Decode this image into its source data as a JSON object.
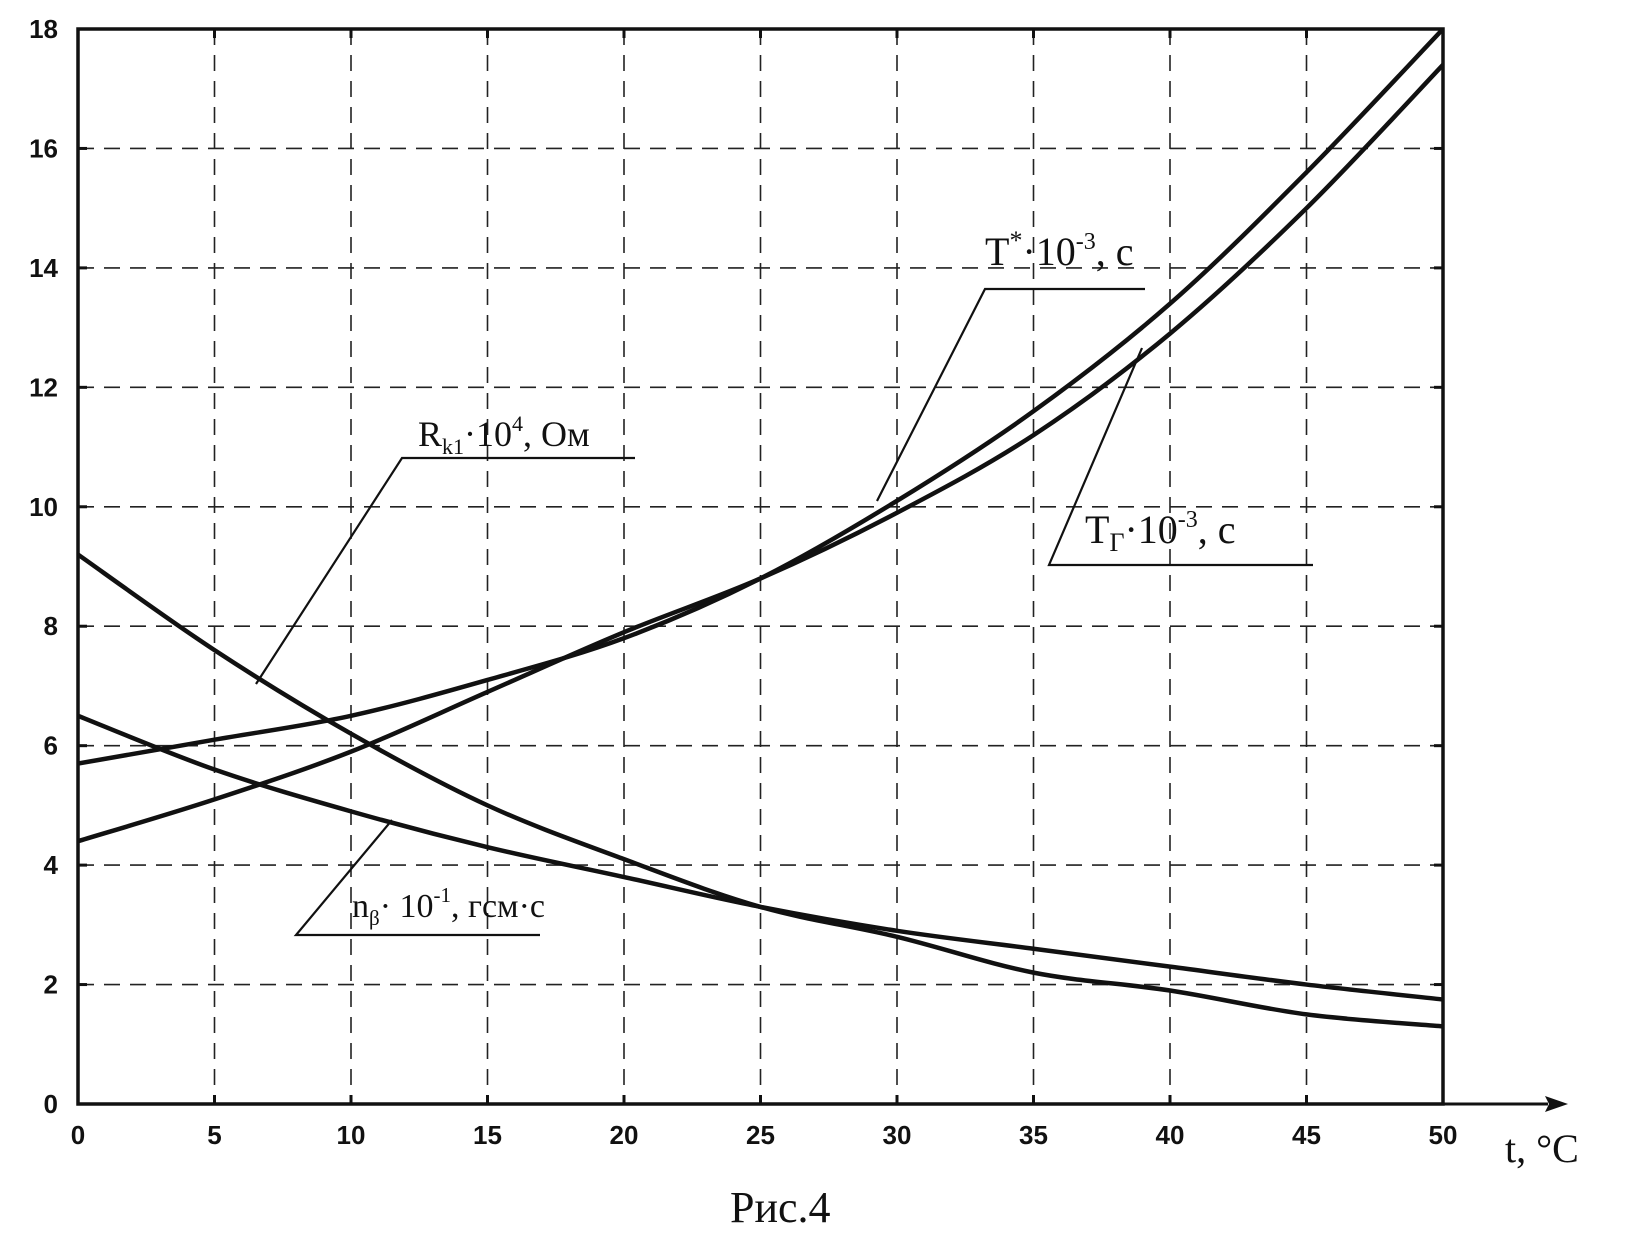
{
  "chart_data": {
    "type": "line",
    "title": "",
    "caption": "Рис.4",
    "xlabel": "t, °C",
    "ylabel": "",
    "xlim": [
      0,
      50
    ],
    "ylim": [
      0,
      18
    ],
    "xticks": [
      0,
      5,
      10,
      15,
      20,
      25,
      30,
      35,
      40,
      45,
      50
    ],
    "yticks": [
      0,
      2,
      4,
      6,
      8,
      10,
      12,
      14,
      16,
      18
    ],
    "grid": true,
    "series": [
      {
        "name": "T*·10^-3, c",
        "label": {
          "base": "T",
          "sup": "*",
          "rest": "·10",
          "exp": "-3",
          "unit": ", c"
        },
        "x": [
          0,
          5,
          10,
          15,
          20,
          25,
          30,
          35,
          40,
          45,
          50
        ],
        "y": [
          5.7,
          6.1,
          6.5,
          7.1,
          7.8,
          8.8,
          10.1,
          11.6,
          13.4,
          15.6,
          18.0
        ]
      },
      {
        "name": "TГ·10^-3, c",
        "label": {
          "base": "T",
          "sub": "Г",
          "rest": "·10",
          "exp": "-3",
          "unit": ", c"
        },
        "x": [
          0,
          5,
          10,
          15,
          20,
          25,
          30,
          35,
          40,
          45,
          50
        ],
        "y": [
          4.4,
          5.1,
          5.9,
          6.9,
          7.9,
          8.8,
          9.9,
          11.2,
          12.9,
          15.0,
          17.4
        ]
      },
      {
        "name": "Rk1·10^4, Ом",
        "label": {
          "base": "R",
          "sub": "k1",
          "rest": "·10",
          "exp": "4",
          "unit": ", Ом"
        },
        "x": [
          0,
          5,
          10,
          15,
          20,
          25,
          30,
          35,
          40,
          45,
          50
        ],
        "y": [
          9.2,
          7.6,
          6.2,
          5.0,
          4.1,
          3.3,
          2.8,
          2.2,
          1.9,
          1.5,
          1.3
        ]
      },
      {
        "name": "nβ·10^-1, гсм·с",
        "label": {
          "base": "n",
          "sub": "β",
          "rest": "· 10",
          "exp": "-1",
          "unit": ", гсм·с"
        },
        "x": [
          0,
          5,
          10,
          15,
          20,
          25,
          30,
          35,
          40,
          45,
          50
        ],
        "y": [
          6.5,
          5.6,
          4.9,
          4.3,
          3.8,
          3.3,
          2.9,
          2.6,
          2.3,
          2.0,
          1.75
        ]
      }
    ]
  }
}
